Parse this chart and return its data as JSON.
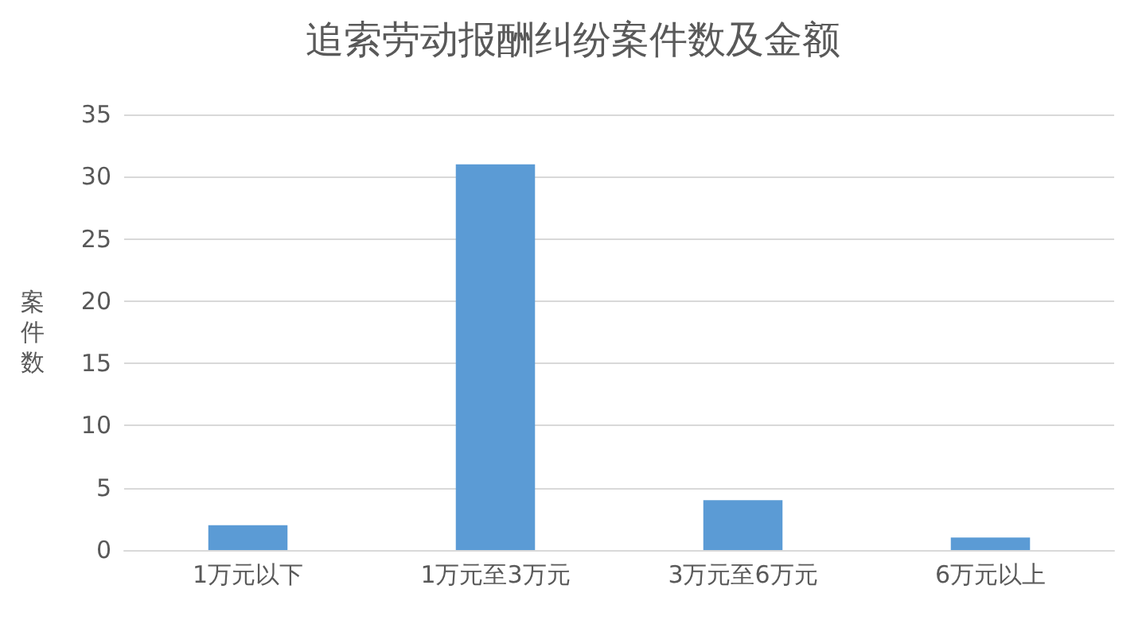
{
  "chart_data": {
    "type": "bar",
    "title": "追索劳动报酬纠纷案件数及金额",
    "ylabel": "案件数",
    "categories": [
      "1万元以下",
      "1万元至3万元",
      "3万元至6万元",
      "6万元以上"
    ],
    "values": [
      2,
      31,
      4,
      1
    ],
    "color": "#5b9bd5",
    "ylim": [
      0,
      35
    ],
    "yticks": [
      0,
      5,
      10,
      15,
      20,
      25,
      30,
      35
    ],
    "grid": "y"
  }
}
